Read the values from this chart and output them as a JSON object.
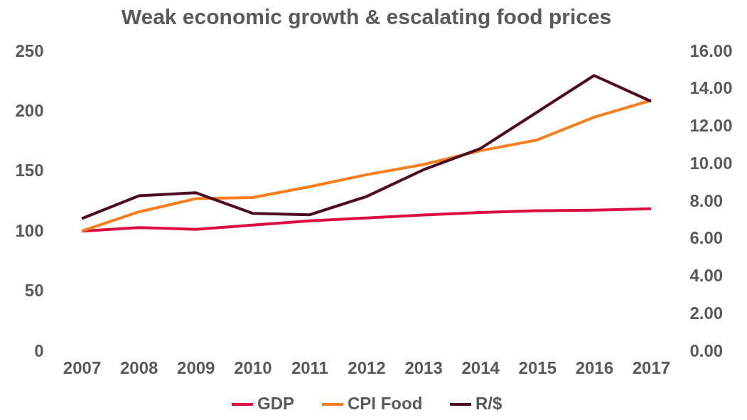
{
  "chart_data": {
    "type": "line",
    "title": "Weak economic growth & escalating food prices",
    "categories": [
      "2007",
      "2008",
      "2009",
      "2010",
      "2011",
      "2012",
      "2013",
      "2014",
      "2015",
      "2016",
      "2017"
    ],
    "series": [
      {
        "name": "GDP",
        "color": "#dc0d3f",
        "values": [
          100,
          103,
          101.5,
          105,
          108.5,
          111,
          113.5,
          115.5,
          117,
          117.5,
          118.7
        ]
      },
      {
        "name": "CPI Food",
        "color": "#fa7d1e",
        "values": [
          100,
          116,
          127,
          128,
          137,
          147,
          155.5,
          167,
          176,
          195,
          209
        ]
      },
      {
        "name": "R/$",
        "color": "#4d0a22",
        "axis": "y2",
        "values": [
          7.07,
          8.28,
          8.45,
          7.35,
          7.27,
          8.24,
          9.67,
          10.8,
          12.75,
          14.7,
          13.32
        ]
      }
    ],
    "ylim": [
      0,
      250
    ],
    "yticks": [
      0,
      50,
      100,
      150,
      200,
      250
    ],
    "y2lim": [
      0,
      16
    ],
    "y2ticks": [
      {
        "value": 0,
        "label": "0.00"
      },
      {
        "value": 2,
        "label": "2.00"
      },
      {
        "value": 4,
        "label": "4.00"
      },
      {
        "value": 6,
        "label": "6.00"
      },
      {
        "value": 8,
        "label": "8.00"
      },
      {
        "value": 10,
        "label": "10.00"
      },
      {
        "value": 12,
        "label": "12.00"
      },
      {
        "value": 14,
        "label": "14.00"
      },
      {
        "value": 16,
        "label": "16.00"
      }
    ],
    "grid": false,
    "legend": "bottom",
    "marker": "none",
    "line_style": "solid"
  }
}
